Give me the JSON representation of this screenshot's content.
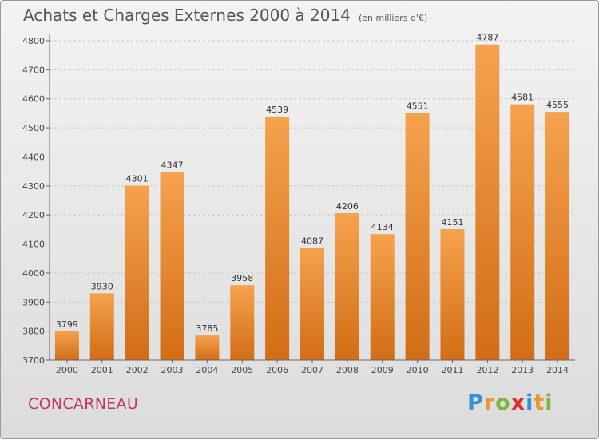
{
  "header": {
    "title": "Achats et Charges Externes 2000 à 2014",
    "subtitle": "(en milliers d'€)"
  },
  "footer": {
    "city": "CONCARNEAU",
    "brand": {
      "letters": [
        "P",
        "r",
        "o",
        "x",
        "i",
        "t",
        "i"
      ],
      "colors": [
        "#3a8fd0",
        "#e79a2b",
        "#7cb53f",
        "#d8322f",
        "#3a8fd0",
        "#e79a2b",
        "#7cb53f"
      ]
    }
  },
  "chart_data": {
    "type": "bar",
    "categories": [
      "2000",
      "2001",
      "2002",
      "2003",
      "2004",
      "2005",
      "2006",
      "2007",
      "2008",
      "2009",
      "2010",
      "2011",
      "2012",
      "2013",
      "2014"
    ],
    "values": [
      3799,
      3930,
      4301,
      4347,
      3785,
      3958,
      4539,
      4087,
      4206,
      4134,
      4551,
      4151,
      4787,
      4581,
      4555
    ],
    "title": "Achats et Charges Externes 2000 à 2014",
    "subtitle": "(en milliers d'€)",
    "ylim": [
      3700,
      4800
    ],
    "yticks": [
      3700,
      3800,
      3900,
      4000,
      4100,
      4200,
      4300,
      4400,
      4500,
      4600,
      4700,
      4800
    ],
    "grid": true,
    "bar_color_top": "#f5a24d",
    "bar_color_bottom": "#d26d16"
  }
}
